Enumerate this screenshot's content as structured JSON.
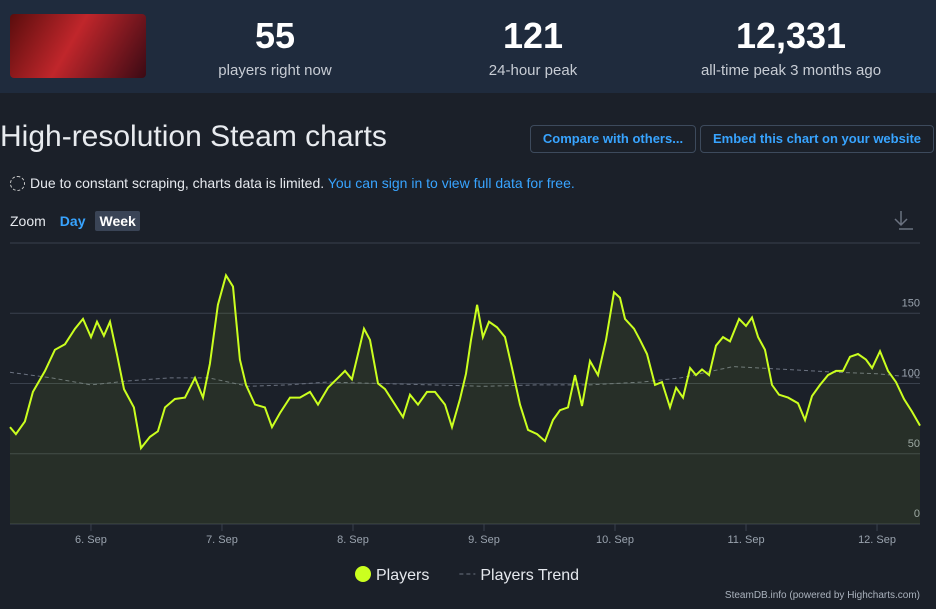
{
  "header": {
    "stats": [
      {
        "value": "55",
        "label": "players right now"
      },
      {
        "value": "121",
        "label": "24-hour peak"
      },
      {
        "value": "12,331",
        "label": "all-time peak 3 months ago"
      }
    ]
  },
  "title": "High-resolution Steam charts",
  "buttons": [
    "Compare with others...",
    "Embed this chart on your website"
  ],
  "notice": {
    "text": "Due to constant scraping, charts data is limited.",
    "link": "You can sign in to view full data for free."
  },
  "zoom": {
    "label": "Zoom",
    "options": [
      "Day",
      "Week"
    ]
  },
  "credit": "SteamDB.info (powered by Highcharts.com)",
  "chart_data": {
    "type": "line",
    "xlim": [
      5.382,
      12.328
    ],
    "ylim": [
      0,
      200
    ],
    "yticks": [
      0,
      50,
      100,
      150
    ],
    "grid": true,
    "xticks": [
      {
        "value": 6,
        "label": "6. Sep"
      },
      {
        "value": 7,
        "label": "7. Sep"
      },
      {
        "value": 8,
        "label": "8. Sep"
      },
      {
        "value": 9,
        "label": "9. Sep"
      },
      {
        "value": 10,
        "label": "10. Sep"
      },
      {
        "value": 11,
        "label": "11. Sep"
      },
      {
        "value": 12,
        "label": "12. Sep"
      }
    ],
    "series": [
      {
        "name": "Players",
        "color": "#cbff1f",
        "style": "solid",
        "x": [
          5.382,
          5.427,
          5.496,
          5.557,
          5.649,
          5.725,
          5.802,
          5.878,
          5.939,
          6.0,
          6.046,
          6.099,
          6.145,
          6.198,
          6.252,
          6.328,
          6.382,
          6.45,
          6.511,
          6.565,
          6.641,
          6.718,
          6.794,
          6.855,
          6.908,
          6.969,
          7.031,
          7.084,
          7.137,
          7.183,
          7.252,
          7.328,
          7.382,
          7.443,
          7.519,
          7.595,
          7.672,
          7.733,
          7.809,
          7.885,
          7.939,
          7.992,
          8.038,
          8.084,
          8.13,
          8.191,
          8.244,
          8.321,
          8.382,
          8.435,
          8.496,
          8.565,
          8.626,
          8.702,
          8.756,
          8.817,
          8.863,
          8.901,
          8.947,
          8.992,
          9.038,
          9.099,
          9.16,
          9.214,
          9.275,
          9.336,
          9.405,
          9.466,
          9.527,
          9.58,
          9.641,
          9.695,
          9.748,
          9.809,
          9.87,
          9.931,
          9.992,
          10.038,
          10.076,
          10.145,
          10.191,
          10.244,
          10.305,
          10.359,
          10.42,
          10.466,
          10.519,
          10.573,
          10.618,
          10.664,
          10.718,
          10.771,
          10.824,
          10.878,
          10.947,
          11.0,
          11.046,
          11.092,
          11.145,
          11.198,
          11.252,
          11.321,
          11.397,
          11.45,
          11.504,
          11.565,
          11.626,
          11.687,
          11.74,
          11.794,
          11.855,
          11.916,
          11.962,
          12.023,
          12.084,
          12.145,
          12.206,
          12.267,
          12.328
        ],
        "values": [
          69,
          64,
          73,
          94,
          109,
          124,
          128,
          139,
          146,
          133,
          144,
          134,
          144,
          121,
          96,
          83,
          54,
          62,
          66,
          83,
          89,
          90,
          104,
          90,
          114,
          156,
          177,
          169,
          117,
          99,
          85,
          83,
          69,
          79,
          90,
          90,
          94,
          85,
          97,
          104,
          109,
          103,
          121,
          139,
          131,
          100,
          96,
          85,
          76,
          92,
          85,
          94,
          94,
          85,
          69,
          89,
          107,
          131,
          156,
          133,
          144,
          140,
          133,
          111,
          85,
          67,
          64,
          59,
          74,
          81,
          83,
          106,
          84,
          116,
          106,
          131,
          165,
          161,
          146,
          139,
          131,
          121,
          99,
          101,
          83,
          97,
          90,
          111,
          106,
          110,
          106,
          127,
          133,
          130,
          146,
          141,
          147,
          133,
          124,
          99,
          92,
          90,
          86,
          74,
          91,
          99,
          106,
          109,
          109,
          119,
          121,
          117,
          111,
          123,
          109,
          101,
          89,
          80,
          70
        ]
      },
      {
        "name": "Players Trend",
        "color": "#6b7280",
        "style": "dashed",
        "x": [
          5.382,
          5.7,
          6.0,
          6.3,
          6.6,
          6.9,
          7.2,
          7.5,
          7.8,
          8.2,
          8.6,
          9.0,
          9.4,
          9.8,
          10.2,
          10.5,
          10.9,
          11.3,
          11.7,
          12.0,
          12.328
        ],
        "values": [
          108,
          104,
          99,
          102,
          104,
          104,
          98,
          99,
          101,
          100,
          99,
          98,
          99,
          99,
          101,
          104,
          112,
          110,
          108,
          107,
          104
        ]
      }
    ]
  }
}
